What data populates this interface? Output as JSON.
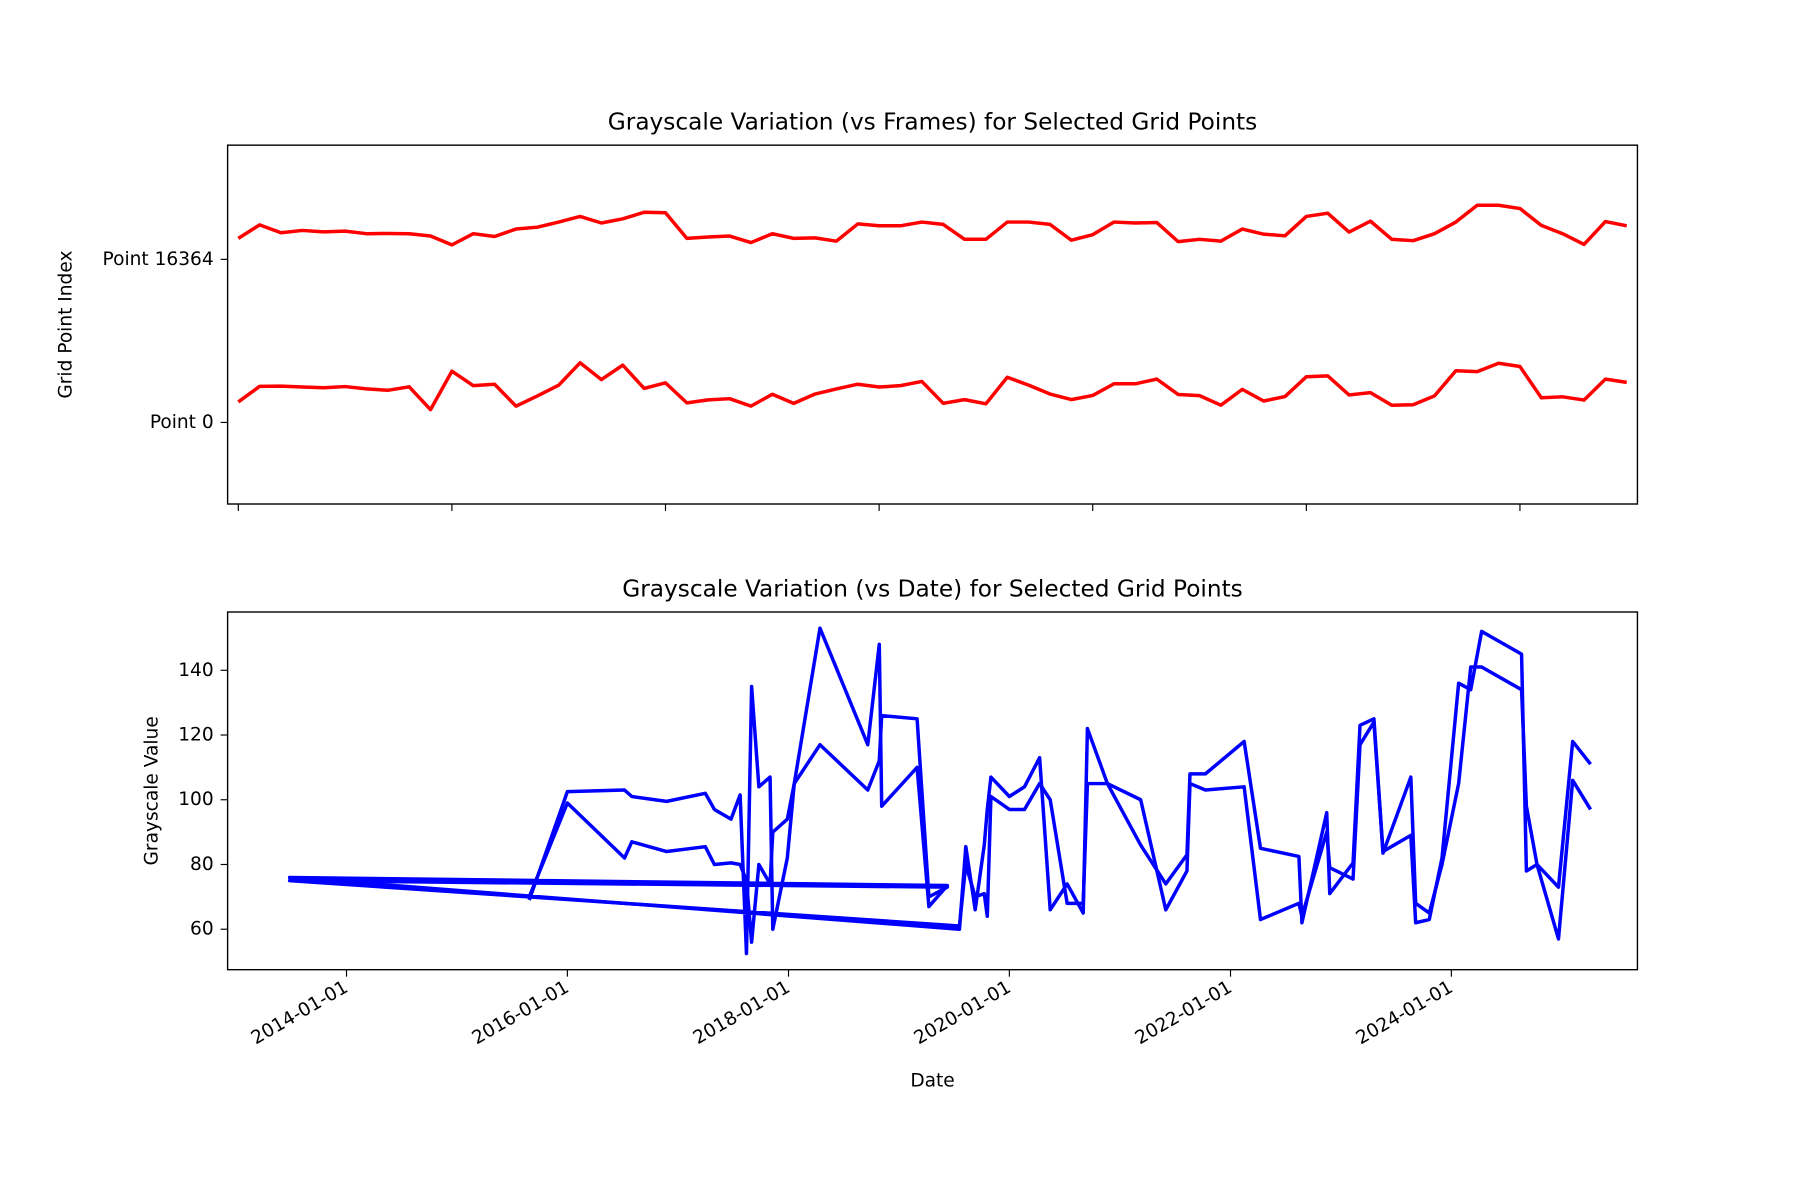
{
  "chart_data": [
    {
      "type": "heatmap",
      "title": "Grayscale Variation (vs Frames) for Selected Grid Points",
      "ylabel": "Grid Point Index",
      "yticks": [
        {
          "value": 0,
          "label": "Point 0"
        },
        {
          "value": 1,
          "label": "Point 16364"
        }
      ],
      "ylim": [
        1.7,
        -0.5
      ],
      "xticks": [
        0,
        10,
        20,
        30,
        40,
        50,
        60
      ],
      "cmap": "gray",
      "line_color": "red",
      "rows": [
        [
          69,
          102.5,
          103,
          101,
          99.5,
          102,
          97,
          94,
          101.5,
          52.5,
          135,
          104,
          107,
          60,
          82,
          105,
          153,
          117,
          148,
          98,
          110,
          67,
          73.5,
          76,
          60,
          85.5,
          66,
          86,
          97,
          107,
          101,
          104,
          113,
          66,
          74,
          65,
          122,
          105,
          86,
          74,
          83,
          108,
          108,
          118,
          85,
          82.5,
          62,
          96,
          71,
          80.5,
          123,
          125,
          84,
          89,
          62,
          63,
          82,
          136,
          134,
          152,
          145,
          78,
          80,
          73,
          118,
          111
        ],
        [
          70,
          99,
          82,
          87,
          84,
          85.5,
          80,
          80.5,
          80,
          75,
          56,
          80,
          74,
          90,
          94,
          105,
          117,
          103,
          112,
          126,
          125,
          70,
          73,
          75,
          61,
          80,
          70,
          71,
          64,
          101,
          97,
          97,
          105,
          100,
          68,
          68,
          105,
          105,
          100,
          66,
          78,
          105,
          103,
          104,
          63,
          68,
          64,
          90,
          79,
          75.5,
          117,
          124,
          83.5,
          107,
          68,
          65,
          80,
          105,
          141,
          141,
          134,
          98,
          80,
          57,
          106,
          97
        ]
      ]
    },
    {
      "type": "line",
      "title": "Grayscale Variation (vs Date) for Selected Grid Points",
      "xlabel": "Date",
      "ylabel": "Grayscale Value",
      "xlim": [
        "2012-12-04",
        "2025-09-07"
      ],
      "xticks": [
        "2014-01-01",
        "2016-01-01",
        "2018-01-01",
        "2020-01-01",
        "2022-01-01",
        "2024-01-01"
      ],
      "ylim": [
        47.5,
        158
      ],
      "yticks": [
        60,
        80,
        100,
        120,
        140
      ],
      "x": [
        "2015-08-28",
        "2016-01-01",
        "2016-07-08",
        "2016-08-01",
        "2016-11-24",
        "2017-04-01",
        "2017-05-01",
        "2017-06-25",
        "2017-07-25",
        "2017-08-15",
        "2017-09-01",
        "2017-09-25",
        "2017-11-01",
        "2017-11-10",
        "2017-12-28",
        "2018-01-20",
        "2018-04-15",
        "2018-09-20",
        "2018-10-28",
        "2018-11-05",
        "2019-03-02",
        "2019-04-10",
        "2019-06-10",
        "2013-06-27",
        "2019-07-20",
        "2019-08-10",
        "2019-09-10",
        "2019-10-10",
        "2019-10-20",
        "2019-11-01",
        "2020-01-01",
        "2020-02-20",
        "2020-04-10",
        "2020-05-15",
        "2020-07-10",
        "2020-09-01",
        "2020-09-15",
        "2020-11-20",
        "2021-03-10",
        "2021-06-01",
        "2021-08-10",
        "2021-08-20",
        "2021-10-10",
        "2022-02-15",
        "2022-04-10",
        "2022-08-15",
        "2022-08-25",
        "2022-11-15",
        "2022-11-25",
        "2023-02-10",
        "2023-03-05",
        "2023-04-20",
        "2023-05-20",
        "2023-08-20",
        "2023-09-05",
        "2023-10-20",
        "2023-12-01",
        "2024-01-25",
        "2024-03-05",
        "2024-04-10",
        "2024-08-20",
        "2024-09-05",
        "2024-10-10",
        "2024-12-20",
        "2025-02-05",
        "2025-04-05"
      ],
      "series": [
        {
          "color": "blue",
          "values": [
            69,
            102.5,
            103,
            101,
            99.5,
            102,
            97,
            94,
            101.5,
            52.5,
            135,
            104,
            107,
            60,
            82,
            105,
            153,
            117,
            148,
            98,
            110,
            67,
            73.5,
            76,
            60,
            85.5,
            66,
            86,
            97,
            107,
            101,
            104,
            113,
            66,
            74,
            65,
            122,
            105,
            86,
            74,
            83,
            108,
            108,
            118,
            85,
            82.5,
            62,
            96,
            71,
            80.5,
            123,
            125,
            84,
            89,
            62,
            63,
            82,
            136,
            134,
            152,
            145,
            78,
            80,
            73,
            118,
            111
          ]
        },
        {
          "color": "blue",
          "values": [
            70,
            99,
            82,
            87,
            84,
            85.5,
            80,
            80.5,
            80,
            75,
            56,
            80,
            74,
            90,
            94,
            105,
            117,
            103,
            112,
            126,
            125,
            70,
            73,
            75,
            61,
            80,
            70,
            71,
            64,
            101,
            97,
            97,
            105,
            100,
            68,
            68,
            105,
            105,
            100,
            66,
            78,
            105,
            103,
            104,
            63,
            68,
            64,
            90,
            79,
            75.5,
            117,
            124,
            83.5,
            107,
            68,
            65,
            80,
            105,
            141,
            141,
            134,
            98,
            80,
            57,
            106,
            97
          ]
        }
      ]
    }
  ]
}
